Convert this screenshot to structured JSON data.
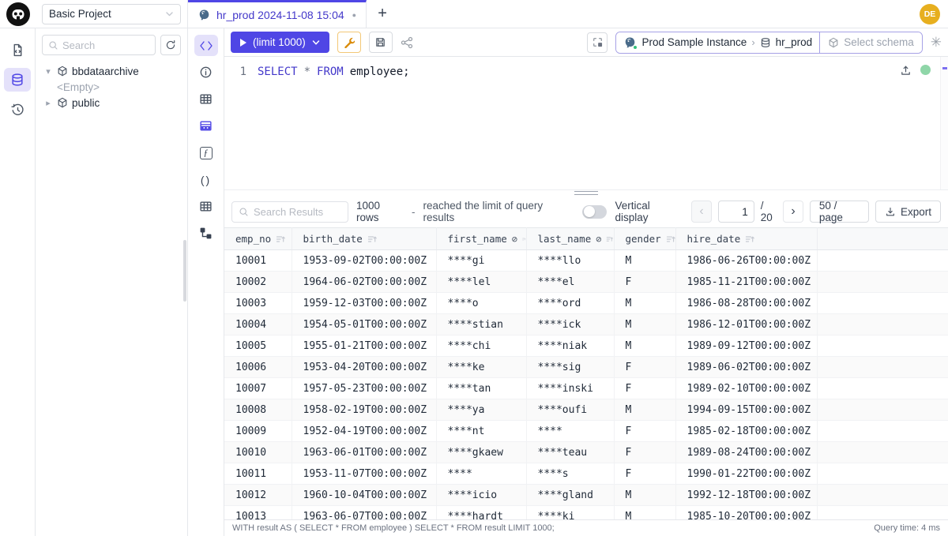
{
  "topbar": {
    "project_name": "Basic Project",
    "tab_title": "hr_prod 2024-11-08 15:04",
    "avatar_initials": "DE"
  },
  "sidebar": {
    "search_placeholder": "Search",
    "tree": {
      "schema1": "bbdataarchive",
      "schema1_child": "<Empty>",
      "schema2": "public"
    }
  },
  "toolbar": {
    "run_label": "(limit 1000)",
    "connection": {
      "instance": "Prod Sample Instance",
      "database": "hr_prod",
      "schema_placeholder": "Select schema"
    }
  },
  "editor": {
    "line_number": "1",
    "sql_kw1": "SELECT",
    "sql_star": "*",
    "sql_kw2": "FROM",
    "sql_rest": "employee;"
  },
  "results": {
    "search_placeholder": "Search Results",
    "rows_count": "1000 rows",
    "dash": "-",
    "limit_note": "reached the limit of query results",
    "vertical_display_label": "Vertical display",
    "page": "1",
    "page_total": "/ 20",
    "page_size": "50 / page",
    "export_label": "Export"
  },
  "table": {
    "columns": [
      {
        "label": "emp_no",
        "masked": false
      },
      {
        "label": "birth_date",
        "masked": false
      },
      {
        "label": "first_name",
        "masked": true
      },
      {
        "label": "last_name",
        "masked": true
      },
      {
        "label": "gender",
        "masked": false
      },
      {
        "label": "hire_date",
        "masked": false
      }
    ],
    "rows": [
      [
        "10001",
        "1953-09-02T00:00:00Z",
        "****gi",
        "****llo",
        "M",
        "1986-06-26T00:00:00Z"
      ],
      [
        "10002",
        "1964-06-02T00:00:00Z",
        "****lel",
        "****el",
        "F",
        "1985-11-21T00:00:00Z"
      ],
      [
        "10003",
        "1959-12-03T00:00:00Z",
        "****o",
        "****ord",
        "M",
        "1986-08-28T00:00:00Z"
      ],
      [
        "10004",
        "1954-05-01T00:00:00Z",
        "****stian",
        "****ick",
        "M",
        "1986-12-01T00:00:00Z"
      ],
      [
        "10005",
        "1955-01-21T00:00:00Z",
        "****chi",
        "****niak",
        "M",
        "1989-09-12T00:00:00Z"
      ],
      [
        "10006",
        "1953-04-20T00:00:00Z",
        "****ke",
        "****sig",
        "F",
        "1989-06-02T00:00:00Z"
      ],
      [
        "10007",
        "1957-05-23T00:00:00Z",
        "****tan",
        "****inski",
        "F",
        "1989-02-10T00:00:00Z"
      ],
      [
        "10008",
        "1958-02-19T00:00:00Z",
        "****ya",
        "****oufi",
        "M",
        "1994-09-15T00:00:00Z"
      ],
      [
        "10009",
        "1952-04-19T00:00:00Z",
        "****nt",
        "****",
        "F",
        "1985-02-18T00:00:00Z"
      ],
      [
        "10010",
        "1963-06-01T00:00:00Z",
        "****gkaew",
        "****teau",
        "F",
        "1989-08-24T00:00:00Z"
      ],
      [
        "10011",
        "1953-11-07T00:00:00Z",
        "****",
        "****s",
        "F",
        "1990-01-22T00:00:00Z"
      ],
      [
        "10012",
        "1960-10-04T00:00:00Z",
        "****icio",
        "****gland",
        "M",
        "1992-12-18T00:00:00Z"
      ],
      [
        "10013",
        "1963-06-07T00:00:00Z",
        "****hardt",
        "****ki",
        "M",
        "1985-10-20T00:00:00Z"
      ]
    ]
  },
  "statusbar": {
    "query": "WITH result AS ( SELECT * FROM employee ) SELECT * FROM result LIMIT 1000;",
    "time": "Query time: 4 ms"
  },
  "icons": {
    "tree_collapse": "▾",
    "tree_expand": "▸",
    "tab_dot": "●",
    "plus": "+",
    "breadcrumb_sep": "›",
    "prev": "‹",
    "next": "›",
    "ai": "✳",
    "function_glyph": "ƒ",
    "braces": "()",
    "masked": "⊘"
  },
  "colors": {
    "accent": "#4f46e5",
    "wand": "#d97706",
    "status_green": "#8fd6a8",
    "avatar": "#e7af1f"
  }
}
